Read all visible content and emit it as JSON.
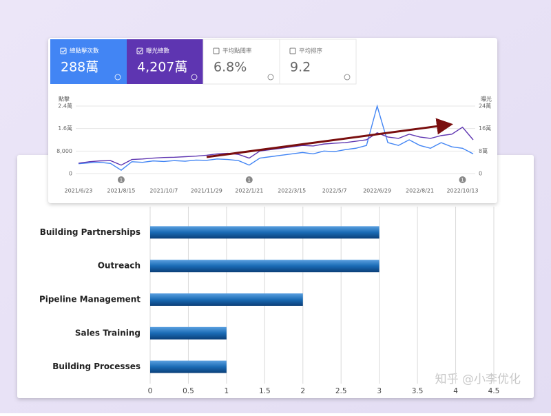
{
  "metrics": [
    {
      "label": "總點擊次數",
      "value": "288萬",
      "selected": true,
      "color": "#4285f4"
    },
    {
      "label": "曝光總數",
      "value": "4,207萬",
      "selected": true,
      "color": "#5e35b1"
    },
    {
      "label": "平均點閱率",
      "value": "6.8%",
      "selected": false,
      "color": "#ffffff"
    },
    {
      "label": "平均排序",
      "value": "9.2",
      "selected": false,
      "color": "#ffffff"
    }
  ],
  "watermark": "知乎 @小李优化",
  "chart_data": [
    {
      "type": "line",
      "y_label": "點擊",
      "y2_label": "曝光",
      "categories": [
        "2021/6/23",
        null,
        null,
        null,
        "2021/8/15",
        null,
        null,
        null,
        "2021/10/7",
        null,
        null,
        null,
        "2021/11/29",
        null,
        null,
        null,
        "2022/1/21",
        null,
        null,
        null,
        "2022/3/15",
        null,
        null,
        null,
        "2022/5/7",
        null,
        null,
        null,
        "2022/6/29",
        null,
        null,
        null,
        "2022/8/21",
        null,
        null,
        null,
        "2022/10/13",
        null
      ],
      "series": [
        {
          "name": "總點擊次數",
          "color": "#4285f4",
          "values": [
            3500,
            3800,
            4000,
            3600,
            1200,
            4200,
            4000,
            4500,
            4300,
            4600,
            4400,
            4800,
            4700,
            5200,
            5000,
            4600,
            3000,
            5500,
            6000,
            6500,
            7000,
            7500,
            7000,
            8000,
            7800,
            8500,
            9000,
            10000,
            24000,
            11000,
            10000,
            12000,
            10000,
            9000,
            11000,
            9500,
            9000,
            7000
          ]
        },
        {
          "name": "曝光總數",
          "color": "#5e35b1",
          "axis": "y2",
          "values": [
            37000,
            42000,
            45000,
            46000,
            30000,
            50000,
            52000,
            55000,
            57000,
            58000,
            60000,
            62000,
            65000,
            70000,
            72000,
            68000,
            55000,
            80000,
            85000,
            90000,
            95000,
            100000,
            98000,
            105000,
            108000,
            110000,
            115000,
            120000,
            145000,
            130000,
            125000,
            140000,
            130000,
            125000,
            135000,
            140000,
            165000,
            120000
          ]
        }
      ],
      "ylim": [
        0,
        24000
      ],
      "yticks": [
        0,
        {
          "value": 8000,
          "label": "8,000"
        },
        {
          "value": 16000,
          "label": "1.6萬"
        },
        {
          "value": 24000,
          "label": "2.4萬"
        }
      ],
      "y2lim": [
        0,
        240000
      ],
      "y2ticks": [
        0,
        {
          "value": 80000,
          "label": "8萬"
        },
        {
          "value": 160000,
          "label": "16萬"
        },
        {
          "value": 240000,
          "label": "24萬"
        }
      ],
      "grid": true,
      "annotations": [
        {
          "x": "2021/8/15",
          "label": "1"
        },
        {
          "x": "2022/1/21",
          "label": "1"
        },
        {
          "x": "2022/10/13",
          "label": "1"
        }
      ]
    },
    {
      "type": "bar",
      "orientation": "horizontal",
      "color": "#1a6bb5",
      "categories": [
        "Building Partnerships",
        "Outreach",
        "Pipeline Management",
        "Sales Training",
        "Building Processes"
      ],
      "values": [
        3,
        3,
        2,
        1,
        1
      ],
      "xlim": [
        0,
        4.5
      ],
      "xticks": [
        0,
        0.5,
        1,
        1.5,
        2,
        2.5,
        3,
        3.5,
        4,
        4.5
      ],
      "grid": true
    }
  ]
}
